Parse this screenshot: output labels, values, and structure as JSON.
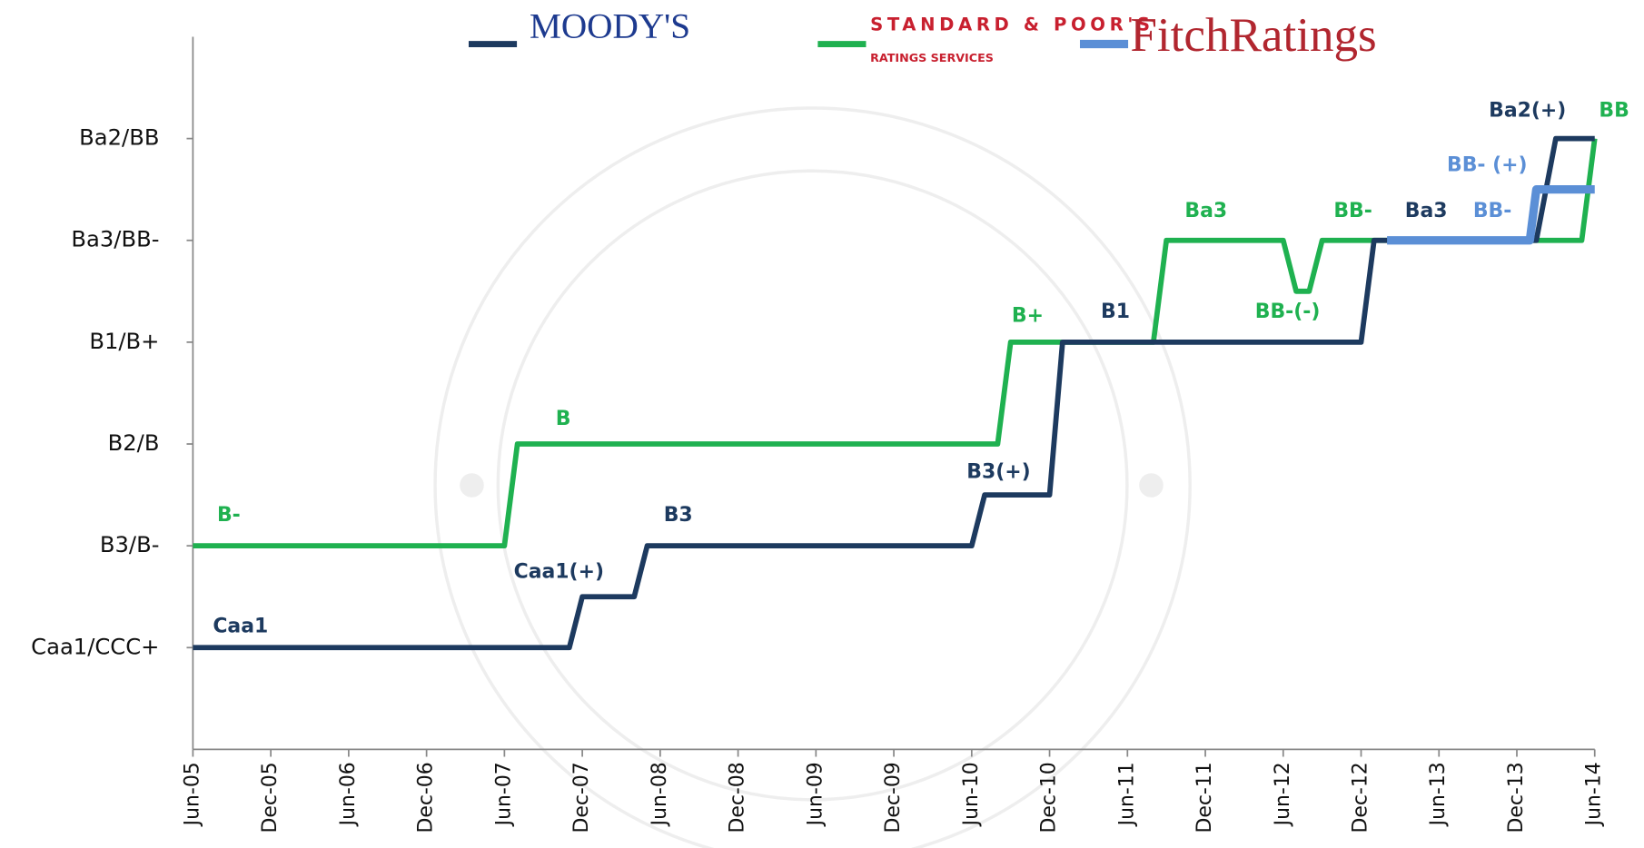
{
  "chart_data": {
    "type": "line",
    "xlim": [
      0,
      108
    ],
    "xticks": [
      {
        "value": 0,
        "label": "Jun-05"
      },
      {
        "value": 6,
        "label": "Dec-05"
      },
      {
        "value": 12,
        "label": "Jun-06"
      },
      {
        "value": 18,
        "label": "Dec-06"
      },
      {
        "value": 24,
        "label": "Jun-07"
      },
      {
        "value": 30,
        "label": "Dec-07"
      },
      {
        "value": 36,
        "label": "Jun-08"
      },
      {
        "value": 42,
        "label": "Dec-08"
      },
      {
        "value": 48,
        "label": "Jun-09"
      },
      {
        "value": 54,
        "label": "Dec-09"
      },
      {
        "value": 60,
        "label": "Jun-10"
      },
      {
        "value": 66,
        "label": "Dec-10"
      },
      {
        "value": 72,
        "label": "Jun-11"
      },
      {
        "value": 78,
        "label": "Dec-11"
      },
      {
        "value": 84,
        "label": "Jun-12"
      },
      {
        "value": 90,
        "label": "Dec-12"
      },
      {
        "value": 96,
        "label": "Jun-13"
      },
      {
        "value": 102,
        "label": "Dec-13"
      },
      {
        "value": 108,
        "label": "Jun-14"
      }
    ],
    "ylim": [
      0,
      7
    ],
    "yticks": [
      {
        "value": 1,
        "label": "Caa1/CCC+"
      },
      {
        "value": 2,
        "label": "B3/B-"
      },
      {
        "value": 3,
        "label": "B2/B"
      },
      {
        "value": 4,
        "label": "B1/B+"
      },
      {
        "value": 5,
        "label": "Ba3/BB-"
      },
      {
        "value": 6,
        "label": "Ba2/BB"
      }
    ],
    "series": [
      {
        "name": "STANDARD & POOR'S",
        "name_sub": "RATINGS SERVICES",
        "color": "#1fb150",
        "x": [
          0,
          24,
          25,
          62,
          63,
          74,
          75,
          84,
          85,
          86,
          87,
          107,
          108
        ],
        "values": [
          2,
          2,
          3,
          3,
          4,
          4,
          5,
          5,
          4.5,
          4.5,
          5,
          5,
          6
        ]
      },
      {
        "name": "MOODY'S",
        "color": "#1d3a5f",
        "x": [
          0,
          29,
          30,
          34,
          35,
          60,
          61,
          66,
          67,
          90,
          91,
          103.5,
          105,
          108
        ],
        "values": [
          1,
          1,
          1.5,
          1.5,
          2,
          2,
          2.5,
          2.5,
          4,
          4,
          5,
          5,
          6,
          6
        ]
      },
      {
        "name": "FitchRatings",
        "color": "#5b8fd6",
        "x": [
          92,
          103,
          103.5,
          108
        ],
        "values": [
          5,
          5,
          5.5,
          5.5
        ]
      }
    ],
    "annotations": [
      {
        "text": "B-",
        "color": "#1fb150"
      },
      {
        "text": "B",
        "color": "#1fb150"
      },
      {
        "text": "B+",
        "color": "#1fb150"
      },
      {
        "text": "Ba3",
        "color": "#1fb150"
      },
      {
        "text": "BB-",
        "color": "#1fb150"
      },
      {
        "text": "BB-(-)",
        "color": "#1fb150"
      },
      {
        "text": "BB",
        "color": "#1fb150"
      },
      {
        "text": "Caa1",
        "color": "#1d3a5f"
      },
      {
        "text": "Caa1(+)",
        "color": "#1d3a5f"
      },
      {
        "text": "B3",
        "color": "#1d3a5f"
      },
      {
        "text": "B3(+)",
        "color": "#1d3a5f"
      },
      {
        "text": "B1",
        "color": "#1d3a5f"
      },
      {
        "text": "Ba3",
        "color": "#1d3a5f"
      },
      {
        "text": "Ba2(+)",
        "color": "#1d3a5f"
      },
      {
        "text": "BB- (+)",
        "color": "#5b8fd6"
      },
      {
        "text": "BB-",
        "color": "#5b8fd6"
      }
    ]
  }
}
